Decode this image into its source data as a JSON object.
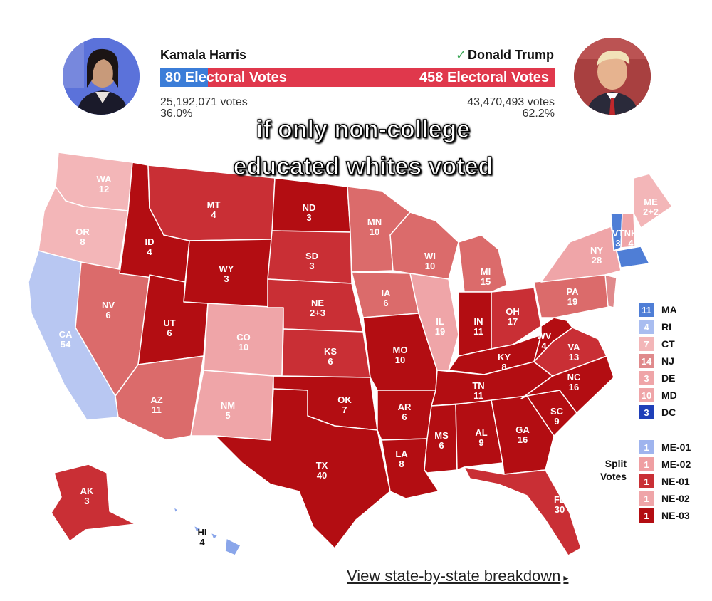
{
  "header": {
    "left": {
      "name": "Kamala Harris",
      "electoral_label": "80 Electoral Votes",
      "popular_votes": "25,192,071 votes",
      "percent": "36.0%",
      "color": "#3b7dd8"
    },
    "right": {
      "check": "✓",
      "name": "Donald Trump",
      "electoral_label": "458 Electoral Votes",
      "popular_votes": "43,470,493 votes",
      "percent": "62.2%",
      "color": "#e0384c"
    }
  },
  "caption": {
    "line1": "if only non-college",
    "line2": "educated whites voted"
  },
  "colors": {
    "safe_r": "#b30d12",
    "likely_r": "#c92f35",
    "lean_r": "#db6b6b",
    "tilt_r": "#efa5a8",
    "tilt_d": "#b8c7f2",
    "lean_d": "#5d86e0",
    "safe_d": "#1f3fb8"
  },
  "states": {
    "WA": {
      "abbr": "WA",
      "ev": "12"
    },
    "OR": {
      "abbr": "OR",
      "ev": "8"
    },
    "CA": {
      "abbr": "CA",
      "ev": "54"
    },
    "NV": {
      "abbr": "NV",
      "ev": "6"
    },
    "ID": {
      "abbr": "ID",
      "ev": "4"
    },
    "MT": {
      "abbr": "MT",
      "ev": "4"
    },
    "WY": {
      "abbr": "WY",
      "ev": "3"
    },
    "UT": {
      "abbr": "UT",
      "ev": "6"
    },
    "AZ": {
      "abbr": "AZ",
      "ev": "11"
    },
    "CO": {
      "abbr": "CO",
      "ev": "10"
    },
    "NM": {
      "abbr": "NM",
      "ev": "5"
    },
    "ND": {
      "abbr": "ND",
      "ev": "3"
    },
    "SD": {
      "abbr": "SD",
      "ev": "3"
    },
    "NE": {
      "abbr": "NE",
      "ev": "2+3"
    },
    "KS": {
      "abbr": "KS",
      "ev": "6"
    },
    "OK": {
      "abbr": "OK",
      "ev": "7"
    },
    "TX": {
      "abbr": "TX",
      "ev": "40"
    },
    "MN": {
      "abbr": "MN",
      "ev": "10"
    },
    "IA": {
      "abbr": "IA",
      "ev": "6"
    },
    "MO": {
      "abbr": "MO",
      "ev": "10"
    },
    "AR": {
      "abbr": "AR",
      "ev": "6"
    },
    "LA": {
      "abbr": "LA",
      "ev": "8"
    },
    "WI": {
      "abbr": "WI",
      "ev": "10"
    },
    "IL": {
      "abbr": "IL",
      "ev": "19"
    },
    "MI": {
      "abbr": "MI",
      "ev": "15"
    },
    "IN": {
      "abbr": "IN",
      "ev": "11"
    },
    "OH": {
      "abbr": "OH",
      "ev": "17"
    },
    "KY": {
      "abbr": "KY",
      "ev": "8"
    },
    "TN": {
      "abbr": "TN",
      "ev": "11"
    },
    "MS": {
      "abbr": "MS",
      "ev": "6"
    },
    "AL": {
      "abbr": "AL",
      "ev": "9"
    },
    "GA": {
      "abbr": "GA",
      "ev": "16"
    },
    "FL": {
      "abbr": "FL",
      "ev": "30"
    },
    "SC": {
      "abbr": "SC",
      "ev": "9"
    },
    "NC": {
      "abbr": "NC",
      "ev": "16"
    },
    "VA": {
      "abbr": "VA",
      "ev": "13"
    },
    "WV": {
      "abbr": "WV",
      "ev": "4"
    },
    "PA": {
      "abbr": "PA",
      "ev": "19"
    },
    "NY": {
      "abbr": "NY",
      "ev": "28"
    },
    "VT": {
      "abbr": "VT",
      "ev": "3"
    },
    "NH": {
      "abbr": "NH",
      "ev": "4"
    },
    "ME": {
      "abbr": "ME",
      "ev": "2+2"
    },
    "AK": {
      "abbr": "AK",
      "ev": "3"
    },
    "HI": {
      "abbr": "HI",
      "ev": "4"
    }
  },
  "small_states_legend": [
    {
      "ev": "11",
      "abbr": "MA",
      "color": "#4f7ed6"
    },
    {
      "ev": "4",
      "abbr": "RI",
      "color": "#a9bdf0"
    },
    {
      "ev": "7",
      "abbr": "CT",
      "color": "#f3b6b8"
    },
    {
      "ev": "14",
      "abbr": "NJ",
      "color": "#e08a8c"
    },
    {
      "ev": "3",
      "abbr": "DE",
      "color": "#efa5a8"
    },
    {
      "ev": "10",
      "abbr": "MD",
      "color": "#efa5a8"
    },
    {
      "ev": "3",
      "abbr": "DC",
      "color": "#1f3fb8"
    }
  ],
  "split_votes": {
    "label_line1": "Split",
    "label_line2": "Votes",
    "items": [
      {
        "ev": "1",
        "abbr": "ME-01",
        "color": "#9fb4ee"
      },
      {
        "ev": "1",
        "abbr": "ME-02",
        "color": "#ef9fa2"
      },
      {
        "ev": "1",
        "abbr": "NE-01",
        "color": "#c92f35"
      },
      {
        "ev": "1",
        "abbr": "NE-02",
        "color": "#efa5a8"
      },
      {
        "ev": "1",
        "abbr": "NE-03",
        "color": "#b30d12"
      }
    ]
  },
  "footer": {
    "link_text": "View state-by-state breakdown",
    "arrow": "▸"
  }
}
